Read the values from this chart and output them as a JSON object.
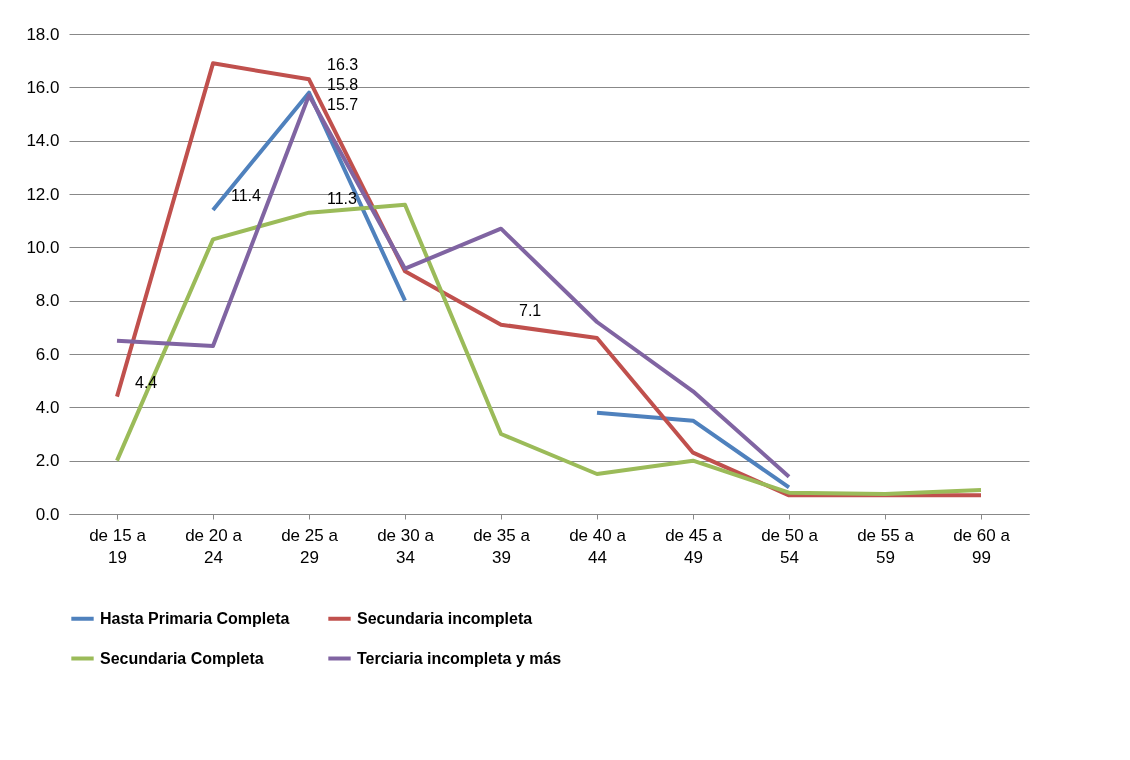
{
  "chart_data": {
    "type": "line",
    "categories": [
      "de 15 a 19",
      "de 20 a 24",
      "de 25 a 29",
      "de 30 a 34",
      "de 35 a 39",
      "de 40 a 44",
      "de 45 a 49",
      "de 50 a 54",
      "de 55 a 59",
      "de 60 a 99"
    ],
    "series": [
      {
        "name": "Hasta Primaria Completa",
        "color": "#4f81bd",
        "values": [
          null,
          11.4,
          15.8,
          8.0,
          null,
          3.8,
          3.5,
          1.0,
          null,
          null
        ],
        "value_labels": [
          null,
          "11.4",
          "15.8",
          null,
          null,
          null,
          null,
          null,
          null,
          null
        ]
      },
      {
        "name": "Secundaria incompleta",
        "color": "#c0504d",
        "values": [
          4.4,
          16.9,
          16.3,
          9.1,
          7.1,
          6.6,
          2.3,
          0.7,
          0.7,
          0.7
        ],
        "value_labels": [
          "4.4",
          null,
          "16.3",
          null,
          "7.1",
          null,
          null,
          null,
          null,
          null
        ]
      },
      {
        "name": "Secundaria Completa",
        "color": "#9bbb59",
        "values": [
          2.0,
          10.3,
          11.3,
          11.6,
          3.0,
          1.5,
          2.0,
          0.8,
          0.75,
          0.9
        ],
        "value_labels": [
          null,
          null,
          "11.3",
          null,
          null,
          null,
          null,
          null,
          null,
          null
        ]
      },
      {
        "name": "Terciaria incompleta y más",
        "color": "#8064a2",
        "values": [
          6.5,
          6.3,
          15.7,
          9.2,
          10.7,
          7.2,
          4.6,
          1.4,
          null,
          null
        ],
        "value_labels": [
          null,
          null,
          "15.7",
          null,
          null,
          null,
          null,
          null,
          null,
          null
        ]
      }
    ],
    "ylim": [
      0,
      18
    ],
    "yticks": [
      {
        "value": 0,
        "label": "0.0"
      },
      {
        "value": 2,
        "label": "2.0"
      },
      {
        "value": 4,
        "label": "4.0"
      },
      {
        "value": 6,
        "label": "6.0"
      },
      {
        "value": 8,
        "label": "8.0"
      },
      {
        "value": 10,
        "label": "10.0"
      },
      {
        "value": 12,
        "label": "12.0"
      },
      {
        "value": 14,
        "label": "14.0"
      },
      {
        "value": 16,
        "label": "16.0"
      },
      {
        "value": 18,
        "label": "18.0"
      }
    ],
    "grid": "y",
    "legend": "bottom",
    "marker": "none",
    "line_style": "solid"
  }
}
